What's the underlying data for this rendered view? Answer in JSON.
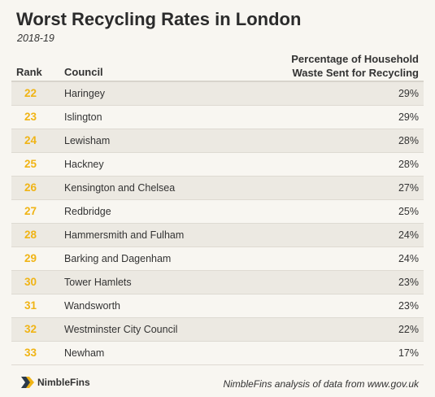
{
  "chart_data": {
    "type": "table",
    "title": "Worst Recycling Rates in London",
    "subtitle": "2018-19",
    "columns": {
      "rank": "Rank",
      "council": "Council",
      "pct_line1": "Percentage of Household",
      "pct_line2": "Waste Sent for Recycling"
    },
    "rows": [
      {
        "rank": "22",
        "council": "Haringey",
        "pct": "29%"
      },
      {
        "rank": "23",
        "council": "Islington",
        "pct": "29%"
      },
      {
        "rank": "24",
        "council": "Lewisham",
        "pct": "28%"
      },
      {
        "rank": "25",
        "council": "Hackney",
        "pct": "28%"
      },
      {
        "rank": "26",
        "council": "Kensington and Chelsea",
        "pct": "27%"
      },
      {
        "rank": "27",
        "council": "Redbridge",
        "pct": "25%"
      },
      {
        "rank": "28",
        "council": "Hammersmith and Fulham",
        "pct": "24%"
      },
      {
        "rank": "29",
        "council": "Barking and Dagenham",
        "pct": "24%"
      },
      {
        "rank": "30",
        "council": "Tower Hamlets",
        "pct": "23%"
      },
      {
        "rank": "31",
        "council": "Wandsworth",
        "pct": "23%"
      },
      {
        "rank": "32",
        "council": "Westminster City Council",
        "pct": "22%"
      },
      {
        "rank": "33",
        "council": "Newham",
        "pct": "17%"
      }
    ]
  },
  "footer": {
    "logo_text": "NimbleFins",
    "logo_icon": "nimblefins-logo-icon",
    "source": "NimbleFins analysis of data from www.gov.uk"
  },
  "colors": {
    "rank_accent": "#f0b415",
    "background": "#f8f6f1",
    "row_alt": "#ece9e2",
    "logo_dark": "#2b3a4a"
  }
}
